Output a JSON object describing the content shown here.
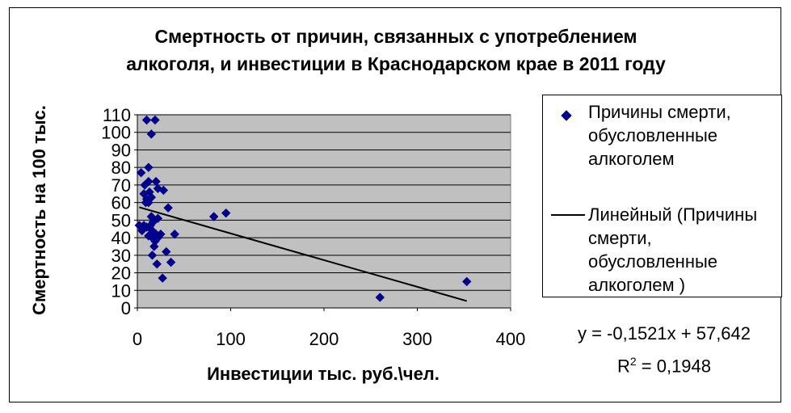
{
  "chart_data": {
    "type": "scatter",
    "title_line1": "Смертность от причин, связанных с употреблением",
    "title_line2": "алкоголя, и инвестиции в Краснодарском крае в 2011 году",
    "xlabel": "Инвестиции тыс. руб.\\чел.",
    "ylabel": "Смертность на 100 тыс.",
    "xlim": [
      0,
      400
    ],
    "ylim": [
      0,
      110
    ],
    "xticks": [
      0,
      100,
      200,
      300,
      400
    ],
    "yticks": [
      0,
      10,
      20,
      30,
      40,
      50,
      60,
      70,
      80,
      90,
      100,
      110
    ],
    "grid": true,
    "plot_background": "#c0c0c0",
    "legend_position": "right",
    "series": [
      {
        "name": "Причины смерти, обусловленные алкоголем",
        "marker": "diamond",
        "color": "#00008b",
        "points": [
          [
            10,
            107
          ],
          [
            19,
            107
          ],
          [
            15,
            99
          ],
          [
            4,
            77
          ],
          [
            12,
            80
          ],
          [
            8,
            70
          ],
          [
            12,
            72
          ],
          [
            20,
            72
          ],
          [
            22,
            68
          ],
          [
            28,
            67
          ],
          [
            7,
            65
          ],
          [
            13,
            66
          ],
          [
            15,
            63
          ],
          [
            10,
            62
          ],
          [
            9,
            60
          ],
          [
            12,
            60
          ],
          [
            33,
            57
          ],
          [
            82,
            52
          ],
          [
            95,
            54
          ],
          [
            15,
            52
          ],
          [
            22,
            51
          ],
          [
            17,
            49
          ],
          [
            2,
            47
          ],
          [
            7,
            47
          ],
          [
            10,
            46
          ],
          [
            14,
            47
          ],
          [
            5,
            44
          ],
          [
            16,
            44
          ],
          [
            20,
            42
          ],
          [
            25,
            42
          ],
          [
            40,
            42
          ],
          [
            16,
            40
          ],
          [
            22,
            40
          ],
          [
            19,
            38
          ],
          [
            12,
            41
          ],
          [
            18,
            35
          ],
          [
            31,
            32
          ],
          [
            16,
            30
          ],
          [
            36,
            26
          ],
          [
            21,
            25
          ],
          [
            27,
            17
          ],
          [
            260,
            6
          ],
          [
            353,
            15
          ]
        ]
      }
    ],
    "trendline": {
      "name": "Линейный (Причины смерти, обусловленные алкоголем )",
      "type": "linear",
      "slope": -0.1521,
      "intercept": 57.642,
      "x_range": [
        2,
        353
      ],
      "color": "#000000"
    },
    "equation": "y = -0,1521x + 57,642",
    "r2_prefix": "R",
    "r2_sup": "2",
    "r2_value": " = 0,1948"
  },
  "legend": {
    "item1_lines": [
      "Причины смерти,",
      "обусловленные",
      "алкоголем"
    ],
    "item2_lines": [
      "Линейный (Причины",
      "смерти,",
      "обусловленные",
      "алкоголем )"
    ]
  },
  "icons": {
    "marker": "diamond-marker-icon",
    "line": "trendline-icon"
  }
}
